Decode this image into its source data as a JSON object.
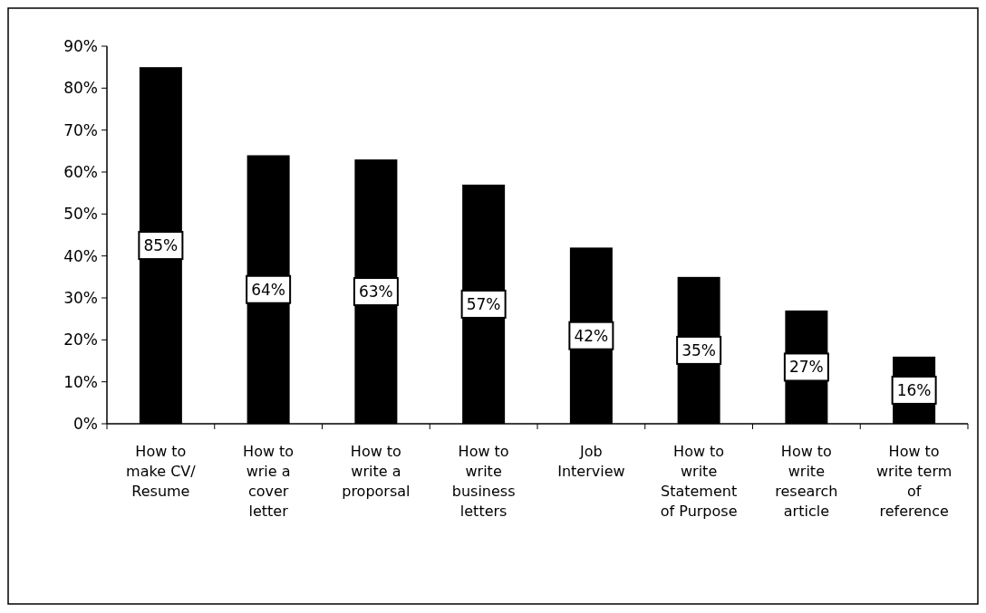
{
  "chart_data": {
    "type": "bar",
    "categories": [
      "How to make CV/ Resume",
      "How to wrie a cover letter",
      "How to write a proporsal",
      "How to write business letters",
      "Job Interview",
      "How to write Statement of Purpose",
      "How to write research article",
      "How to write term of reference"
    ],
    "values": [
      85,
      64,
      63,
      57,
      42,
      35,
      27,
      16
    ],
    "color": "#000000",
    "ylim": [
      0,
      90
    ],
    "yticks": [
      {
        "value": 0,
        "label": "0%"
      },
      {
        "value": 10,
        "label": "10%"
      },
      {
        "value": 20,
        "label": "20%"
      },
      {
        "value": 30,
        "label": "30%"
      },
      {
        "value": 40,
        "label": "40%"
      },
      {
        "value": 50,
        "label": "50%"
      },
      {
        "value": 60,
        "label": "60%"
      },
      {
        "value": 70,
        "label": "70%"
      },
      {
        "value": 80,
        "label": "80%"
      },
      {
        "value": 90,
        "label": "90%"
      }
    ],
    "value_labels": [
      "85%",
      "64%",
      "63%",
      "57%",
      "42%",
      "35%",
      "27%",
      "16%"
    ],
    "grid": false
  }
}
